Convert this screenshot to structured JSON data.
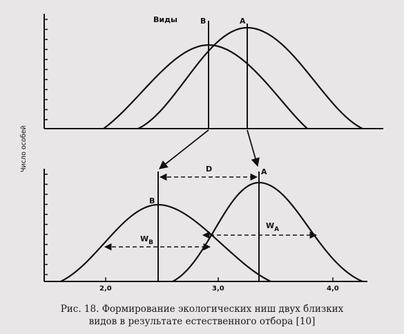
{
  "top_panel": {
    "species_label": "Виды",
    "curve_b_label": "B",
    "curve_a_label": "A"
  },
  "bottom_panel": {
    "curve_b_label": "B",
    "curve_a_label": "A",
    "distance_label": "D",
    "width_b_main": "W",
    "width_b_sub": "B",
    "width_a_main": "W",
    "width_a_sub": "A",
    "x_ticks": [
      "2,0",
      "3,0",
      "4,0"
    ]
  },
  "y_axis_label": "Число особей",
  "caption": {
    "line1": "Рис. 18. Формирование экологических ниш двух близких",
    "line2": "видов в результате естественного отбора [10]"
  }
}
